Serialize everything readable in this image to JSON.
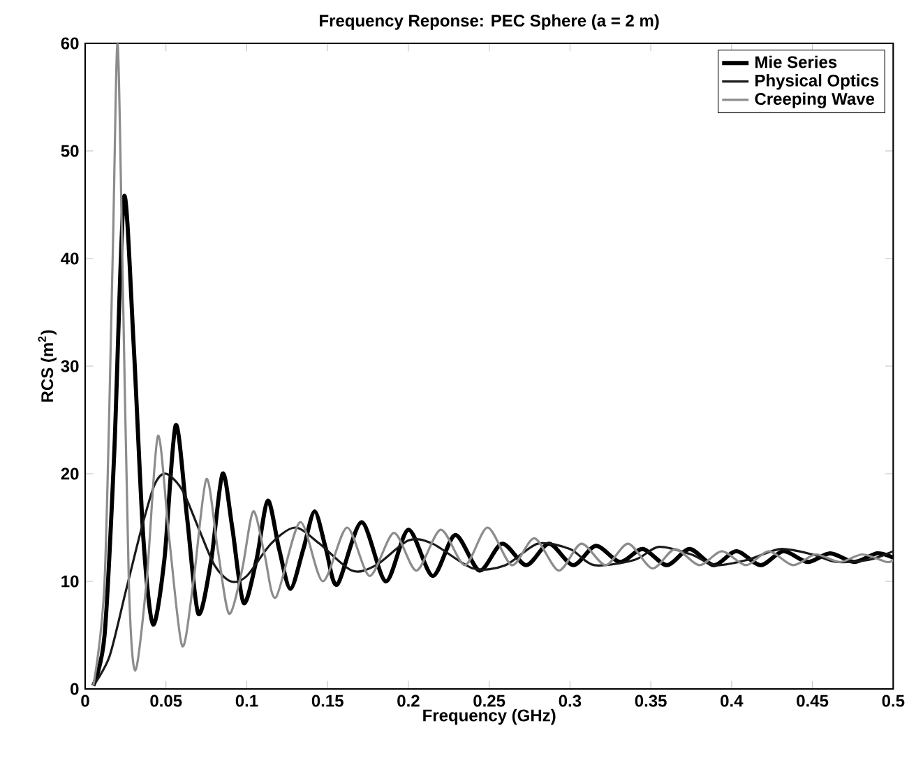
{
  "chart_data": {
    "type": "line",
    "title": "Frequency Reponse: PEC Sphere (a = 2 m)",
    "xlabel": "Frequency (GHz)",
    "ylabel": "RCS (m$^{2}$)",
    "xlim": [
      0,
      0.5
    ],
    "ylim": [
      0,
      60
    ],
    "xticks": [
      0,
      0.05,
      0.1,
      0.15,
      0.2,
      0.25,
      0.3,
      0.35,
      0.4,
      0.45,
      0.5
    ],
    "yticks": [
      0,
      10,
      20,
      30,
      40,
      50,
      60
    ],
    "grid": false,
    "legend": "top right",
    "marker": "none",
    "line_style": "solid",
    "series": [
      {
        "name": "Mie Series",
        "color": "#000000",
        "x": [
          0.005,
          0.012,
          0.018,
          0.024,
          0.03,
          0.036,
          0.042,
          0.049,
          0.056,
          0.063,
          0.07,
          0.078,
          0.085,
          0.091,
          0.098,
          0.106,
          0.113,
          0.12,
          0.127,
          0.135,
          0.142,
          0.149,
          0.156,
          0.171,
          0.186,
          0.2,
          0.215,
          0.229,
          0.244,
          0.258,
          0.273,
          0.287,
          0.302,
          0.316,
          0.331,
          0.345,
          0.36,
          0.374,
          0.389,
          0.403,
          0.418,
          0.432,
          0.447,
          0.461,
          0.476,
          0.49,
          0.5
        ],
        "values": [
          0.3,
          5,
          22,
          45.7,
          32,
          14,
          6,
          12,
          24.5,
          16,
          7,
          12,
          20,
          15,
          8,
          12,
          17.5,
          13,
          9.3,
          13,
          16.5,
          13,
          9.7,
          15.5,
          10,
          14.8,
          10.5,
          14.3,
          11,
          13.5,
          11.5,
          13.5,
          11.5,
          13.3,
          11.8,
          13,
          11.5,
          13,
          11.5,
          12.8,
          11.5,
          12.8,
          11.8,
          12.6,
          11.8,
          12.6,
          12.2
        ]
      },
      {
        "name": "Physical Optics",
        "color": "#1a1a1a",
        "x": [
          0.005,
          0.015,
          0.025,
          0.035,
          0.043,
          0.05,
          0.06,
          0.07,
          0.08,
          0.09,
          0.1,
          0.115,
          0.13,
          0.145,
          0.165,
          0.18,
          0.2,
          0.215,
          0.24,
          0.26,
          0.28,
          0.3,
          0.315,
          0.34,
          0.355,
          0.375,
          0.39,
          0.41,
          0.43,
          0.45,
          0.465,
          0.485,
          0.5
        ],
        "values": [
          0.3,
          3,
          9,
          15,
          19,
          20,
          18.5,
          15,
          11.5,
          10,
          10.5,
          13.5,
          15,
          13.5,
          11,
          11.5,
          13.8,
          13.5,
          11.2,
          11.5,
          13.5,
          13,
          11.5,
          12,
          13.2,
          12.5,
          11.5,
          12,
          13,
          12.5,
          11.8,
          12,
          12.8
        ]
      },
      {
        "name": "Creeping Wave",
        "color": "#8c8c8c",
        "x": [
          0.005,
          0.012,
          0.017,
          0.02,
          0.023,
          0.027,
          0.031,
          0.038,
          0.045,
          0.052,
          0.06,
          0.067,
          0.075,
          0.082,
          0.089,
          0.097,
          0.104,
          0.111,
          0.118,
          0.133,
          0.147,
          0.162,
          0.176,
          0.191,
          0.205,
          0.22,
          0.235,
          0.249,
          0.264,
          0.278,
          0.293,
          0.307,
          0.322,
          0.336,
          0.351,
          0.365,
          0.38,
          0.394,
          0.409,
          0.423,
          0.438,
          0.452,
          0.467,
          0.481,
          0.496,
          0.5
        ],
        "values": [
          0.3,
          10,
          40,
          60,
          40,
          10,
          1.7,
          10,
          23.5,
          14,
          4,
          10,
          19.5,
          13,
          7,
          11,
          16.5,
          12.5,
          8.5,
          15.5,
          10,
          15,
          10.5,
          14.5,
          11,
          14.8,
          11.5,
          15,
          11.5,
          14,
          11,
          13.5,
          11.5,
          13.5,
          11.2,
          13,
          11.5,
          12.8,
          11.5,
          12.8,
          11.5,
          12.5,
          11.8,
          12.5,
          11.8,
          12
        ]
      }
    ]
  }
}
